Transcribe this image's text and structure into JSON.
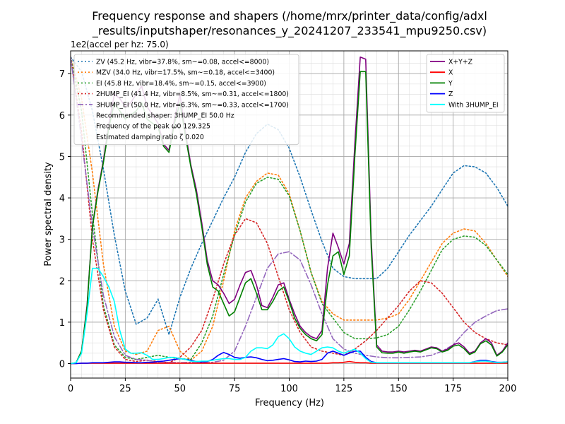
{
  "chart_data": {
    "type": "line",
    "title_line1": "Frequency response and shapers (/home/mrx/printer_data/config/adxl",
    "title_line2": "_results/inputshaper/resonances_y_20241207_233541_mpu9250.csv)",
    "xlabel": "Frequency (Hz)",
    "ylabel": "Power spectral density",
    "y_offset_label": "1e2",
    "y2_label": "(accel per hz: 75.0)",
    "xlim": [
      0,
      200
    ],
    "ylim": [
      -0.35,
      7.55
    ],
    "grid": true,
    "xticks": [
      0,
      25,
      50,
      75,
      100,
      125,
      150,
      175,
      200
    ],
    "yticks": [
      0,
      1,
      2,
      3,
      4,
      5,
      6,
      7
    ],
    "xtick_labels": [
      "0",
      "25",
      "50",
      "75",
      "100",
      "125",
      "150",
      "175",
      "200"
    ],
    "ytick_labels": [
      "0",
      "1",
      "2",
      "3",
      "4",
      "5",
      "6",
      "7"
    ],
    "psd_legend": {
      "placement": "top-right",
      "entries": [
        {
          "label": "X+Y+Z",
          "color": "#800080"
        },
        {
          "label": "X",
          "color": "#ff0000"
        },
        {
          "label": "Y",
          "color": "#008000"
        },
        {
          "label": "Z",
          "color": "#0000ff"
        },
        {
          "label": "With 3HUMP_EI",
          "color": "#00ffff"
        }
      ]
    },
    "shaper_legend": {
      "placement": "top-left",
      "entries": [
        {
          "label": "ZV (45.2 Hz, vibr=37.8%, sm~=0.08, accel<=8000)",
          "color": "#1f77b4",
          "style": "dotted"
        },
        {
          "label": "MZV (34.0 Hz, vibr=17.5%, sm~=0.18, accel<=3400)",
          "color": "#ff7f0e",
          "style": "dotted"
        },
        {
          "label": "EI (45.8 Hz, vibr=18.4%, sm~=0.15, accel<=3900)",
          "color": "#2ca02c",
          "style": "dotted"
        },
        {
          "label": "2HUMP_EI (41.4 Hz, vibr=8.5%, sm~=0.31, accel<=1800)",
          "color": "#d62728",
          "style": "dotted"
        },
        {
          "label": "3HUMP_EI (50.0 Hz, vibr=6.3%, sm~=0.33, accel<=1700)",
          "color": "#9467bd",
          "style": "dashdot"
        },
        {
          "label": "Recommended shaper: 3HUMP_EI 50.0 Hz",
          "color": "",
          "style": "none"
        },
        {
          "label": "Frequency of the peak ω0 129.325",
          "color": "",
          "style": "none"
        },
        {
          "label": "Estimated damping ratio ζ 0.020",
          "color": "",
          "style": "none"
        }
      ]
    },
    "psd_x": [
      0,
      2.5,
      5,
      7.5,
      10,
      12.5,
      15,
      17.5,
      20,
      22.5,
      25,
      27.5,
      30,
      32.5,
      35,
      37.5,
      40,
      42.5,
      45,
      47.5,
      50,
      52.5,
      55,
      57.5,
      60,
      62.5,
      65,
      67.5,
      70,
      72.5,
      75,
      77.5,
      80,
      82.5,
      85,
      87.5,
      90,
      92.5,
      95,
      97.5,
      100,
      102.5,
      105,
      107.5,
      110,
      112.5,
      115,
      117.5,
      120,
      122.5,
      125,
      127.5,
      130,
      132.5,
      135,
      137.5,
      140,
      142.5,
      145,
      147.5,
      150,
      152.5,
      155,
      157.5,
      160,
      162.5,
      165,
      167.5,
      170,
      172.5,
      175,
      177.5,
      180,
      182.5,
      185,
      187.5,
      190,
      192.5,
      195,
      197.5,
      200
    ],
    "psd_series": [
      {
        "name": "X+Y+Z",
        "color": "#800080",
        "values": [
          0,
          0.02,
          0.3,
          1.4,
          3.32,
          4.2,
          4.9,
          5.8,
          6.5,
          6.4,
          6.2,
          6.3,
          6.5,
          6.7,
          6.2,
          6.0,
          5.8,
          5.3,
          5.15,
          5.9,
          6.5,
          5.6,
          4.8,
          4.2,
          3.4,
          2.5,
          2.0,
          1.9,
          1.7,
          1.45,
          1.55,
          1.9,
          2.2,
          2.25,
          1.9,
          1.4,
          1.35,
          1.6,
          1.9,
          1.95,
          1.55,
          1.2,
          0.9,
          0.75,
          0.65,
          0.6,
          0.8,
          2.3,
          3.15,
          2.8,
          2.4,
          2.9,
          5.3,
          7.4,
          7.35,
          3.0,
          0.45,
          0.3,
          0.28,
          0.28,
          0.3,
          0.28,
          0.3,
          0.32,
          0.3,
          0.35,
          0.4,
          0.38,
          0.3,
          0.35,
          0.45,
          0.5,
          0.4,
          0.25,
          0.3,
          0.5,
          0.6,
          0.5,
          0.2,
          0.3,
          0.5
        ]
      },
      {
        "name": "X",
        "color": "#ff0000",
        "values": [
          0,
          0,
          0.01,
          0.01,
          0.01,
          0.01,
          0.01,
          0.01,
          0.01,
          0.01,
          0.01,
          0.01,
          0.01,
          0.01,
          0.01,
          0.01,
          0.01,
          0.01,
          0.01,
          0.01,
          0.01,
          0.01,
          0.01,
          0.01,
          0.01,
          0.01,
          0.01,
          0.01,
          0.01,
          0.01,
          0.01,
          0.01,
          0.01,
          0.01,
          0.01,
          0.01,
          0.01,
          0.01,
          0.01,
          0.01,
          0.01,
          0.01,
          0.01,
          0.01,
          0.01,
          0.01,
          0.01,
          0.01,
          0.02,
          0.02,
          0.03,
          0.05,
          0.03,
          0.02,
          0.02,
          0.01,
          0.01,
          0.01,
          0.01,
          0.01,
          0.01,
          0.01,
          0.01,
          0.01,
          0.01,
          0.01,
          0.01,
          0.01,
          0.01,
          0.01,
          0.01,
          0.01,
          0.01,
          0.01,
          0.01,
          0.01,
          0.01,
          0.01,
          0.01,
          0.01,
          0.01
        ]
      },
      {
        "name": "Y",
        "color": "#008000",
        "values": [
          0,
          0.02,
          0.3,
          1.35,
          3.3,
          4.15,
          4.85,
          5.7,
          6.3,
          6.1,
          5.9,
          6.0,
          6.1,
          6.3,
          5.9,
          5.8,
          5.7,
          5.25,
          5.1,
          5.8,
          6.3,
          5.5,
          4.75,
          4.1,
          3.3,
          2.4,
          1.85,
          1.75,
          1.45,
          1.15,
          1.25,
          1.6,
          1.95,
          2.05,
          1.7,
          1.3,
          1.3,
          1.5,
          1.75,
          1.85,
          1.5,
          1.1,
          0.85,
          0.7,
          0.6,
          0.55,
          0.7,
          1.9,
          2.6,
          2.7,
          2.15,
          2.6,
          5.0,
          7.05,
          7.05,
          2.8,
          0.4,
          0.26,
          0.25,
          0.25,
          0.28,
          0.25,
          0.28,
          0.3,
          0.28,
          0.33,
          0.38,
          0.36,
          0.28,
          0.32,
          0.42,
          0.45,
          0.36,
          0.22,
          0.28,
          0.48,
          0.55,
          0.45,
          0.18,
          0.28,
          0.45
        ]
      },
      {
        "name": "Z",
        "color": "#0000ff",
        "values": [
          0,
          0,
          0.01,
          0.01,
          0.02,
          0.02,
          0.02,
          0.03,
          0.04,
          0.04,
          0.03,
          0.03,
          0.02,
          0.02,
          0.03,
          0.03,
          0.05,
          0.06,
          0.08,
          0.1,
          0.12,
          0.1,
          0.08,
          0.05,
          0.04,
          0.05,
          0.1,
          0.2,
          0.27,
          0.22,
          0.15,
          0.13,
          0.15,
          0.16,
          0.14,
          0.1,
          0.07,
          0.08,
          0.1,
          0.12,
          0.09,
          0.05,
          0.04,
          0.06,
          0.05,
          0.06,
          0.1,
          0.25,
          0.3,
          0.25,
          0.2,
          0.25,
          0.3,
          0.3,
          0.15,
          0.05,
          0.02,
          0.02,
          0.02,
          0.02,
          0.02,
          0.02,
          0.02,
          0.02,
          0.02,
          0.02,
          0.02,
          0.02,
          0.02,
          0.02,
          0.02,
          0.02,
          0.02,
          0.02,
          0.05,
          0.08,
          0.08,
          0.05,
          0.03,
          0.03,
          0.04
        ]
      },
      {
        "name": "With 3HUMP_EI",
        "color": "#00ffff",
        "values": [
          0,
          0.02,
          0.25,
          1.2,
          2.3,
          2.3,
          2.1,
          1.85,
          1.5,
          0.8,
          0.35,
          0.25,
          0.25,
          0.26,
          0.2,
          0.1,
          0.1,
          0.12,
          0.15,
          0.15,
          0.12,
          0.1,
          0.06,
          0.05,
          0.06,
          0.06,
          0.08,
          0.1,
          0.12,
          0.12,
          0.1,
          0.1,
          0.15,
          0.3,
          0.38,
          0.38,
          0.36,
          0.45,
          0.65,
          0.72,
          0.6,
          0.4,
          0.3,
          0.25,
          0.22,
          0.3,
          0.38,
          0.4,
          0.38,
          0.3,
          0.25,
          0.3,
          0.35,
          0.25,
          0.12,
          0.03,
          0.02,
          0.02,
          0.02,
          0.02,
          0.02,
          0.02,
          0.02,
          0.02,
          0.02,
          0.02,
          0.02,
          0.02,
          0.02,
          0.02,
          0.02,
          0.02,
          0.02,
          0.02,
          0.04,
          0.06,
          0.06,
          0.04,
          0.02,
          0.03,
          0.04
        ]
      }
    ],
    "shaper_series": [
      {
        "name": "ZV",
        "color": "#1f77b4",
        "style": "dotted",
        "x": [
          0,
          5,
          10,
          15,
          20,
          25,
          30,
          35,
          40,
          45,
          50,
          55,
          60,
          65,
          70,
          75,
          80,
          85,
          90,
          95,
          100,
          105,
          110,
          115,
          120,
          125,
          130,
          135,
          140,
          145,
          150,
          155,
          160,
          165,
          170,
          175,
          180,
          185,
          190,
          195,
          200
        ],
        "values": [
          7.4,
          7.05,
          6.1,
          4.7,
          3.1,
          1.75,
          0.95,
          1.1,
          1.55,
          0.7,
          1.6,
          2.3,
          2.9,
          3.45,
          4.0,
          4.5,
          5.1,
          5.55,
          5.78,
          5.65,
          5.2,
          4.5,
          3.7,
          2.95,
          2.3,
          2.1,
          2.05,
          2.05,
          2.05,
          2.3,
          2.7,
          3.1,
          3.45,
          3.8,
          4.2,
          4.6,
          4.78,
          4.75,
          4.6,
          4.25,
          3.8
        ]
      },
      {
        "name": "MZV",
        "color": "#ff7f0e",
        "style": "dotted",
        "x": [
          0,
          5,
          10,
          15,
          20,
          25,
          30,
          35,
          40,
          45,
          50,
          55,
          60,
          65,
          70,
          75,
          80,
          85,
          90,
          95,
          100,
          105,
          110,
          115,
          120,
          125,
          130,
          135,
          140,
          145,
          150,
          155,
          160,
          165,
          170,
          175,
          180,
          185,
          190,
          195,
          200
        ],
        "values": [
          7.4,
          6.4,
          4.6,
          2.4,
          0.9,
          0.3,
          0.22,
          0.3,
          0.8,
          0.9,
          0.3,
          0.08,
          0.3,
          0.9,
          2.0,
          3.2,
          4.0,
          4.4,
          4.6,
          4.55,
          4.1,
          3.2,
          2.2,
          1.5,
          1.2,
          1.05,
          1.05,
          1.05,
          1.05,
          1.1,
          1.2,
          1.55,
          2.0,
          2.45,
          2.9,
          3.15,
          3.25,
          3.2,
          2.9,
          2.5,
          2.1
        ]
      },
      {
        "name": "EI",
        "color": "#2ca02c",
        "style": "dotted",
        "x": [
          0,
          5,
          10,
          15,
          20,
          25,
          30,
          35,
          40,
          45,
          50,
          55,
          60,
          65,
          70,
          75,
          80,
          85,
          90,
          95,
          100,
          105,
          110,
          115,
          120,
          125,
          130,
          135,
          140,
          145,
          150,
          155,
          160,
          165,
          170,
          175,
          180,
          185,
          190,
          195,
          200
        ],
        "values": [
          7.4,
          6.1,
          3.6,
          1.4,
          0.45,
          0.15,
          0.1,
          0.15,
          0.2,
          0.15,
          0.12,
          0.1,
          0.5,
          1.15,
          2.15,
          3.1,
          3.9,
          4.35,
          4.5,
          4.45,
          4.05,
          3.2,
          2.2,
          1.45,
          1.1,
          0.75,
          0.6,
          0.6,
          0.62,
          0.7,
          0.9,
          1.3,
          1.75,
          2.25,
          2.75,
          3.0,
          3.08,
          3.05,
          2.85,
          2.5,
          2.15
        ]
      },
      {
        "name": "2HUMP_EI",
        "color": "#d62728",
        "style": "dotted",
        "x": [
          0,
          5,
          10,
          15,
          20,
          25,
          30,
          35,
          40,
          45,
          50,
          55,
          60,
          65,
          70,
          75,
          80,
          85,
          90,
          95,
          100,
          105,
          110,
          115,
          120,
          125,
          130,
          135,
          140,
          145,
          150,
          155,
          160,
          165,
          170,
          175,
          180,
          185,
          190,
          195,
          200
        ],
        "values": [
          7.4,
          5.6,
          3.0,
          1.3,
          0.4,
          0.1,
          0.05,
          0.08,
          0.05,
          0.02,
          0.15,
          0.4,
          0.8,
          1.55,
          2.4,
          3.1,
          3.5,
          3.4,
          2.9,
          2.1,
          1.3,
          0.75,
          0.4,
          0.3,
          0.25,
          0.2,
          0.35,
          0.55,
          0.8,
          1.1,
          1.4,
          1.75,
          2.0,
          1.95,
          1.7,
          1.35,
          1.0,
          0.75,
          0.6,
          0.5,
          0.45
        ]
      },
      {
        "name": "3HUMP_EI",
        "color": "#9467bd",
        "style": "dashdot",
        "x": [
          0,
          5,
          10,
          15,
          20,
          25,
          30,
          35,
          40,
          45,
          50,
          55,
          60,
          65,
          70,
          75,
          80,
          85,
          90,
          95,
          100,
          105,
          110,
          115,
          120,
          125,
          130,
          135,
          140,
          145,
          150,
          155,
          160,
          165,
          170,
          175,
          180,
          185,
          190,
          195,
          200
        ],
        "values": [
          7.4,
          5.4,
          3.3,
          1.65,
          0.65,
          0.2,
          0.1,
          0.08,
          0.03,
          0.03,
          0.02,
          0.03,
          0.02,
          0.03,
          0.08,
          0.3,
          0.9,
          1.6,
          2.3,
          2.65,
          2.7,
          2.5,
          1.9,
          1.2,
          0.6,
          0.35,
          0.25,
          0.2,
          0.16,
          0.14,
          0.14,
          0.15,
          0.16,
          0.2,
          0.3,
          0.45,
          0.75,
          1.0,
          1.15,
          1.28,
          1.32
        ]
      }
    ]
  }
}
